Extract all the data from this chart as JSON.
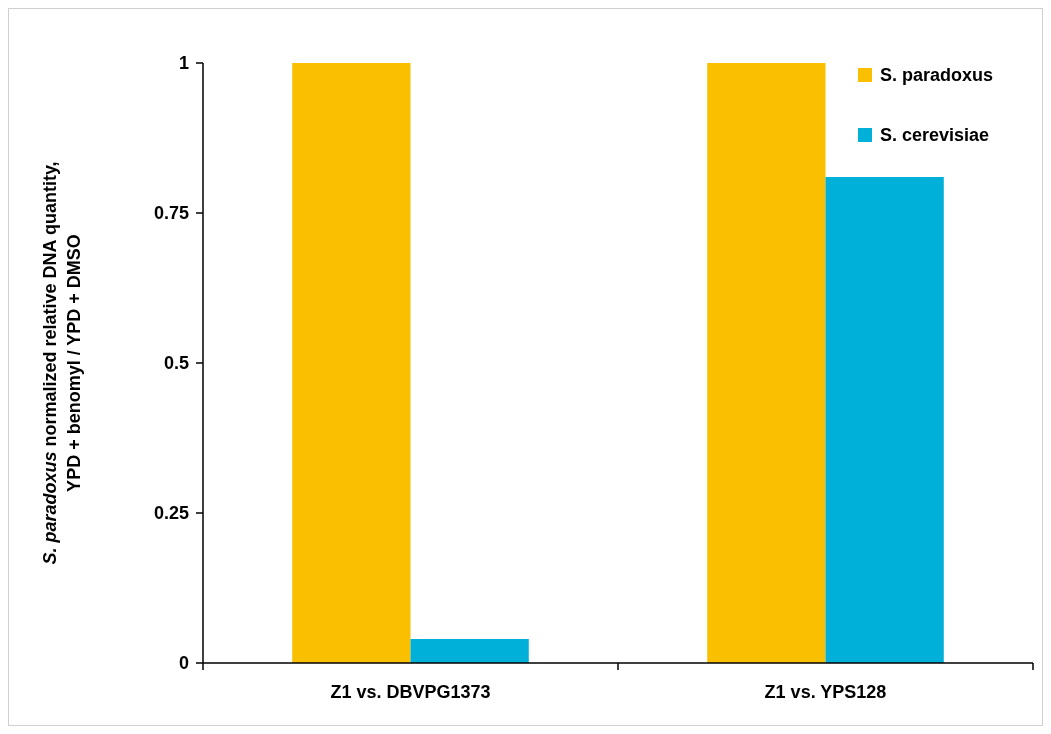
{
  "chart_data": {
    "type": "bar",
    "ylabel": "S. paradoxus normalized relative DNA quantity, YPD + benomyl / YPD + DMSO",
    "categories": [
      "Z1 vs. DBVPG1373",
      "Z1 vs. YPS128"
    ],
    "series": [
      {
        "name": "S. paradoxus",
        "color": "#fac000",
        "values": [
          1,
          1
        ]
      },
      {
        "name": "S. cerevisiae",
        "color": "#00b0d8",
        "values": [
          0.04,
          0.81
        ]
      }
    ],
    "ylim": [
      0,
      1
    ],
    "yticks": [
      0,
      {
        "value": 0.25,
        "label": "0.25"
      },
      {
        "value": 0.5,
        "label": "0.5"
      },
      {
        "value": 0.75,
        "label": "0.75"
      },
      1
    ],
    "grid": false,
    "legend": "top right"
  }
}
